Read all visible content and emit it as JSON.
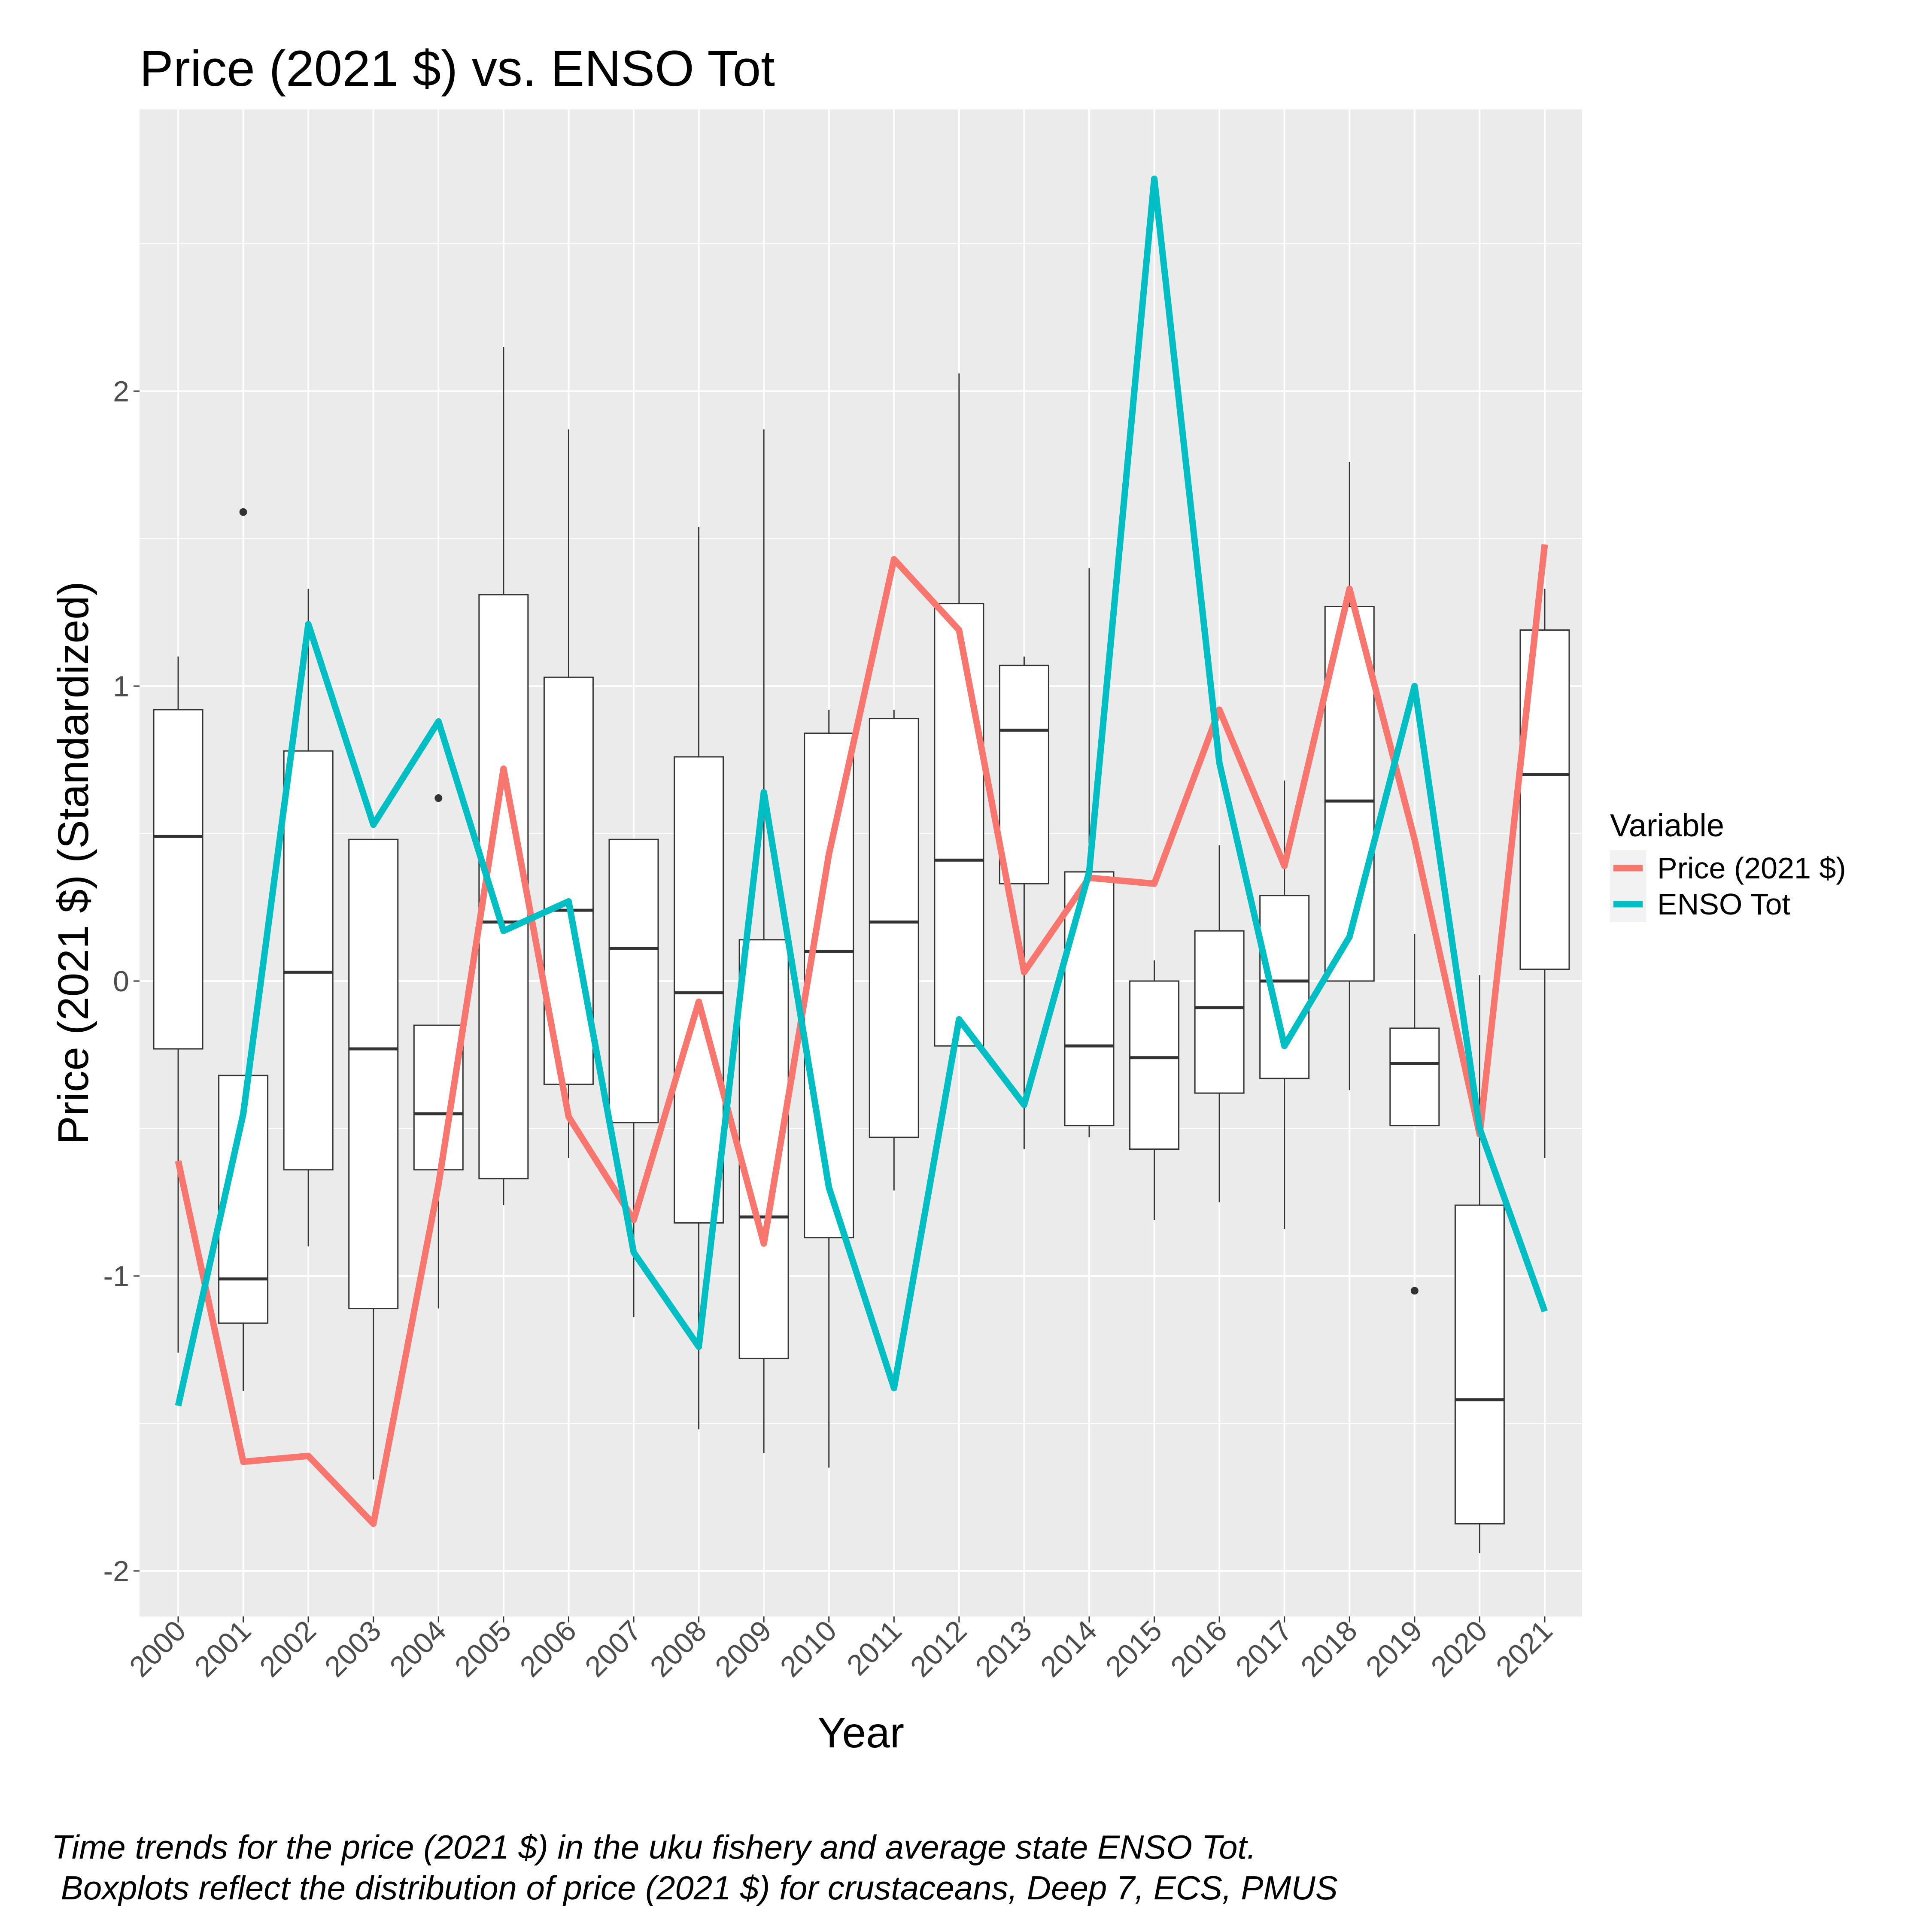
{
  "chart_data": {
    "type": "boxplot+line",
    "title": "Price (2021 $) vs. ENSO Tot",
    "xlabel": "Year",
    "ylabel": "Price (2021 $) (Standardized)",
    "ylim": [
      -2.13,
      2.96
    ],
    "yticks": [
      -2,
      -1,
      0,
      1,
      2
    ],
    "ytick_labels": [
      "-2",
      "-1",
      "0",
      "1",
      "2"
    ],
    "grid": true,
    "legend": {
      "title": "Variable",
      "placement": "right"
    },
    "categories": [
      "2000",
      "2001",
      "2002",
      "2003",
      "2004",
      "2005",
      "2006",
      "2007",
      "2008",
      "2009",
      "2010",
      "2011",
      "2012",
      "2013",
      "2014",
      "2015",
      "2016",
      "2017",
      "2018",
      "2019",
      "2020",
      "2021"
    ],
    "boxes": [
      {
        "lower": -1.26,
        "q1": -0.23,
        "median": 0.49,
        "q3": 0.92,
        "upper": 1.1,
        "outliers": []
      },
      {
        "lower": -1.39,
        "q1": -1.16,
        "median": -1.01,
        "q3": -0.32,
        "upper": -0.32,
        "outliers": [
          1.59
        ]
      },
      {
        "lower": -0.9,
        "q1": -0.64,
        "median": 0.03,
        "q3": 0.78,
        "upper": 1.33,
        "outliers": []
      },
      {
        "lower": -1.69,
        "q1": -1.11,
        "median": -0.23,
        "q3": 0.48,
        "upper": 0.48,
        "outliers": []
      },
      {
        "lower": -1.11,
        "q1": -0.64,
        "median": -0.45,
        "q3": -0.15,
        "upper": -0.15,
        "outliers": [
          0.62
        ]
      },
      {
        "lower": -0.76,
        "q1": -0.67,
        "median": 0.2,
        "q3": 1.31,
        "upper": 2.15,
        "outliers": []
      },
      {
        "lower": -0.6,
        "q1": -0.35,
        "median": 0.24,
        "q3": 1.03,
        "upper": 1.87,
        "outliers": []
      },
      {
        "lower": -1.14,
        "q1": -0.48,
        "median": 0.11,
        "q3": 0.48,
        "upper": 0.48,
        "outliers": []
      },
      {
        "lower": -1.52,
        "q1": -0.82,
        "median": -0.04,
        "q3": 0.76,
        "upper": 1.54,
        "outliers": []
      },
      {
        "lower": -1.6,
        "q1": -1.28,
        "median": -0.8,
        "q3": 0.14,
        "upper": 1.87,
        "outliers": []
      },
      {
        "lower": -1.65,
        "q1": -0.87,
        "median": 0.1,
        "q3": 0.84,
        "upper": 0.92,
        "outliers": []
      },
      {
        "lower": -0.71,
        "q1": -0.53,
        "median": 0.2,
        "q3": 0.89,
        "upper": 0.92,
        "outliers": []
      },
      {
        "lower": -0.22,
        "q1": -0.22,
        "median": 0.41,
        "q3": 1.28,
        "upper": 2.06,
        "outliers": []
      },
      {
        "lower": -0.57,
        "q1": 0.33,
        "median": 0.85,
        "q3": 1.07,
        "upper": 1.1,
        "outliers": []
      },
      {
        "lower": -0.53,
        "q1": -0.49,
        "median": -0.22,
        "q3": 0.37,
        "upper": 1.4,
        "outliers": []
      },
      {
        "lower": -0.81,
        "q1": -0.57,
        "median": -0.26,
        "q3": 0.0,
        "upper": 0.07,
        "outliers": []
      },
      {
        "lower": -0.75,
        "q1": -0.38,
        "median": -0.09,
        "q3": 0.17,
        "upper": 0.46,
        "outliers": []
      },
      {
        "lower": -0.84,
        "q1": -0.33,
        "median": 0.0,
        "q3": 0.29,
        "upper": 0.68,
        "outliers": []
      },
      {
        "lower": -0.37,
        "q1": 0.0,
        "median": 0.61,
        "q3": 1.27,
        "upper": 1.76,
        "outliers": []
      },
      {
        "lower": -0.49,
        "q1": -0.49,
        "median": -0.28,
        "q3": -0.16,
        "upper": 0.16,
        "outliers": [
          -1.05
        ]
      },
      {
        "lower": -1.94,
        "q1": -1.84,
        "median": -1.42,
        "q3": -0.76,
        "upper": 0.02,
        "outliers": []
      },
      {
        "lower": -0.6,
        "q1": 0.04,
        "median": 0.7,
        "q3": 1.19,
        "upper": 1.33,
        "outliers": []
      }
    ],
    "series": [
      {
        "name": "Price (2021 $)",
        "color": "#F8766D",
        "values": [
          -0.61,
          -1.63,
          -1.61,
          -1.84,
          -0.69,
          0.72,
          -0.46,
          -0.81,
          -0.07,
          -0.89,
          0.43,
          1.43,
          1.19,
          0.03,
          0.35,
          0.33,
          0.92,
          0.39,
          1.33,
          0.48,
          -0.52,
          1.48
        ]
      },
      {
        "name": "ENSO Tot",
        "color": "#00BFC4",
        "values": [
          -1.44,
          -0.45,
          1.21,
          0.53,
          0.88,
          0.17,
          0.27,
          -0.92,
          -1.24,
          0.64,
          -0.7,
          -1.38,
          -0.13,
          -0.42,
          0.37,
          2.72,
          0.74,
          -0.22,
          0.15,
          1.0,
          -0.5,
          -1.12
        ]
      }
    ]
  },
  "caption": {
    "line1": "Time trends for the price (2021 $) in the uku fishery and average state ENSO Tot.",
    "line2": " Boxplots reflect the distribution of price (2021 $) for crustaceans, Deep 7, ECS, PMUS"
  }
}
